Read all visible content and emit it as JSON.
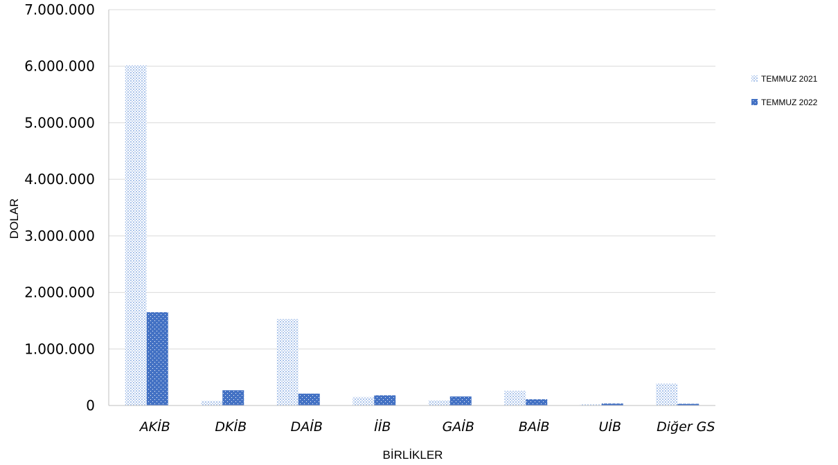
{
  "chart_data": {
    "type": "bar",
    "title": "",
    "xlabel": "BİRLİKLER",
    "ylabel": "DOLAR",
    "ylim": [
      0,
      7000000
    ],
    "y_ticks": [
      "0",
      "1.000.000",
      "2.000.000",
      "3.000.000",
      "4.000.000",
      "5.000.000",
      "6.000.000",
      "7.000.000"
    ],
    "y_tick_values": [
      0,
      1000000,
      2000000,
      3000000,
      4000000,
      5000000,
      6000000,
      7000000
    ],
    "categories": [
      "AKİB",
      "DKİB",
      "DAİB",
      "İİB",
      "GAİB",
      "BAİB",
      "UİB",
      "Diğer GS"
    ],
    "series": [
      {
        "name": "TEMMUZ 2021",
        "values": [
          6020000,
          80000,
          1530000,
          150000,
          90000,
          260000,
          20000,
          390000
        ]
      },
      {
        "name": "TEMMUZ 2022",
        "values": [
          1650000,
          270000,
          210000,
          180000,
          160000,
          110000,
          35000,
          30000
        ]
      }
    ],
    "grid": true,
    "legend_position": "right",
    "colors": {
      "series_2021": "#a9c3ea",
      "series_2022": "#4472c4",
      "grid": "#d9d9d9",
      "axis": "#bfbfbf"
    }
  }
}
